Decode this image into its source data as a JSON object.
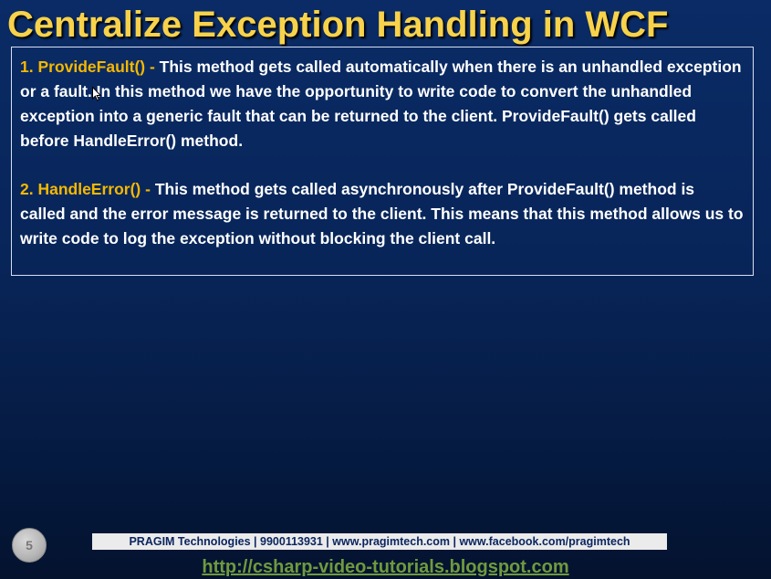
{
  "slide": {
    "title": "Centralize Exception Handling in WCF",
    "items": [
      {
        "term": "1. ProvideFault() -",
        "description": " This method gets called automatically when there is an unhandled exception or a fault. In this method we have the opportunity to write code to convert the unhandled exception into a generic fault that can be returned to the client. ProvideFault() gets called before HandleError() method."
      },
      {
        "term": "2. HandleError() -",
        "description": " This method gets called asynchronously after ProvideFault() method is called and the error message is returned to the client. This means that this method allows us to write code to log the exception without blocking the client call."
      }
    ],
    "page_number": "5",
    "footer_text": "PRAGIM Technologies | 9900113931 | www.pragimtech.com | www.facebook.com/pragimtech",
    "footer_link": "http://csharp-video-tutorials.blogspot.com"
  },
  "colors": {
    "title": "#f7d24a",
    "term": "#f5b800",
    "body_text": "#ffffff",
    "link": "#6f9a3e",
    "footer_text": "#0b2560"
  },
  "icons": {
    "cursor": "mouse-pointer-icon"
  }
}
